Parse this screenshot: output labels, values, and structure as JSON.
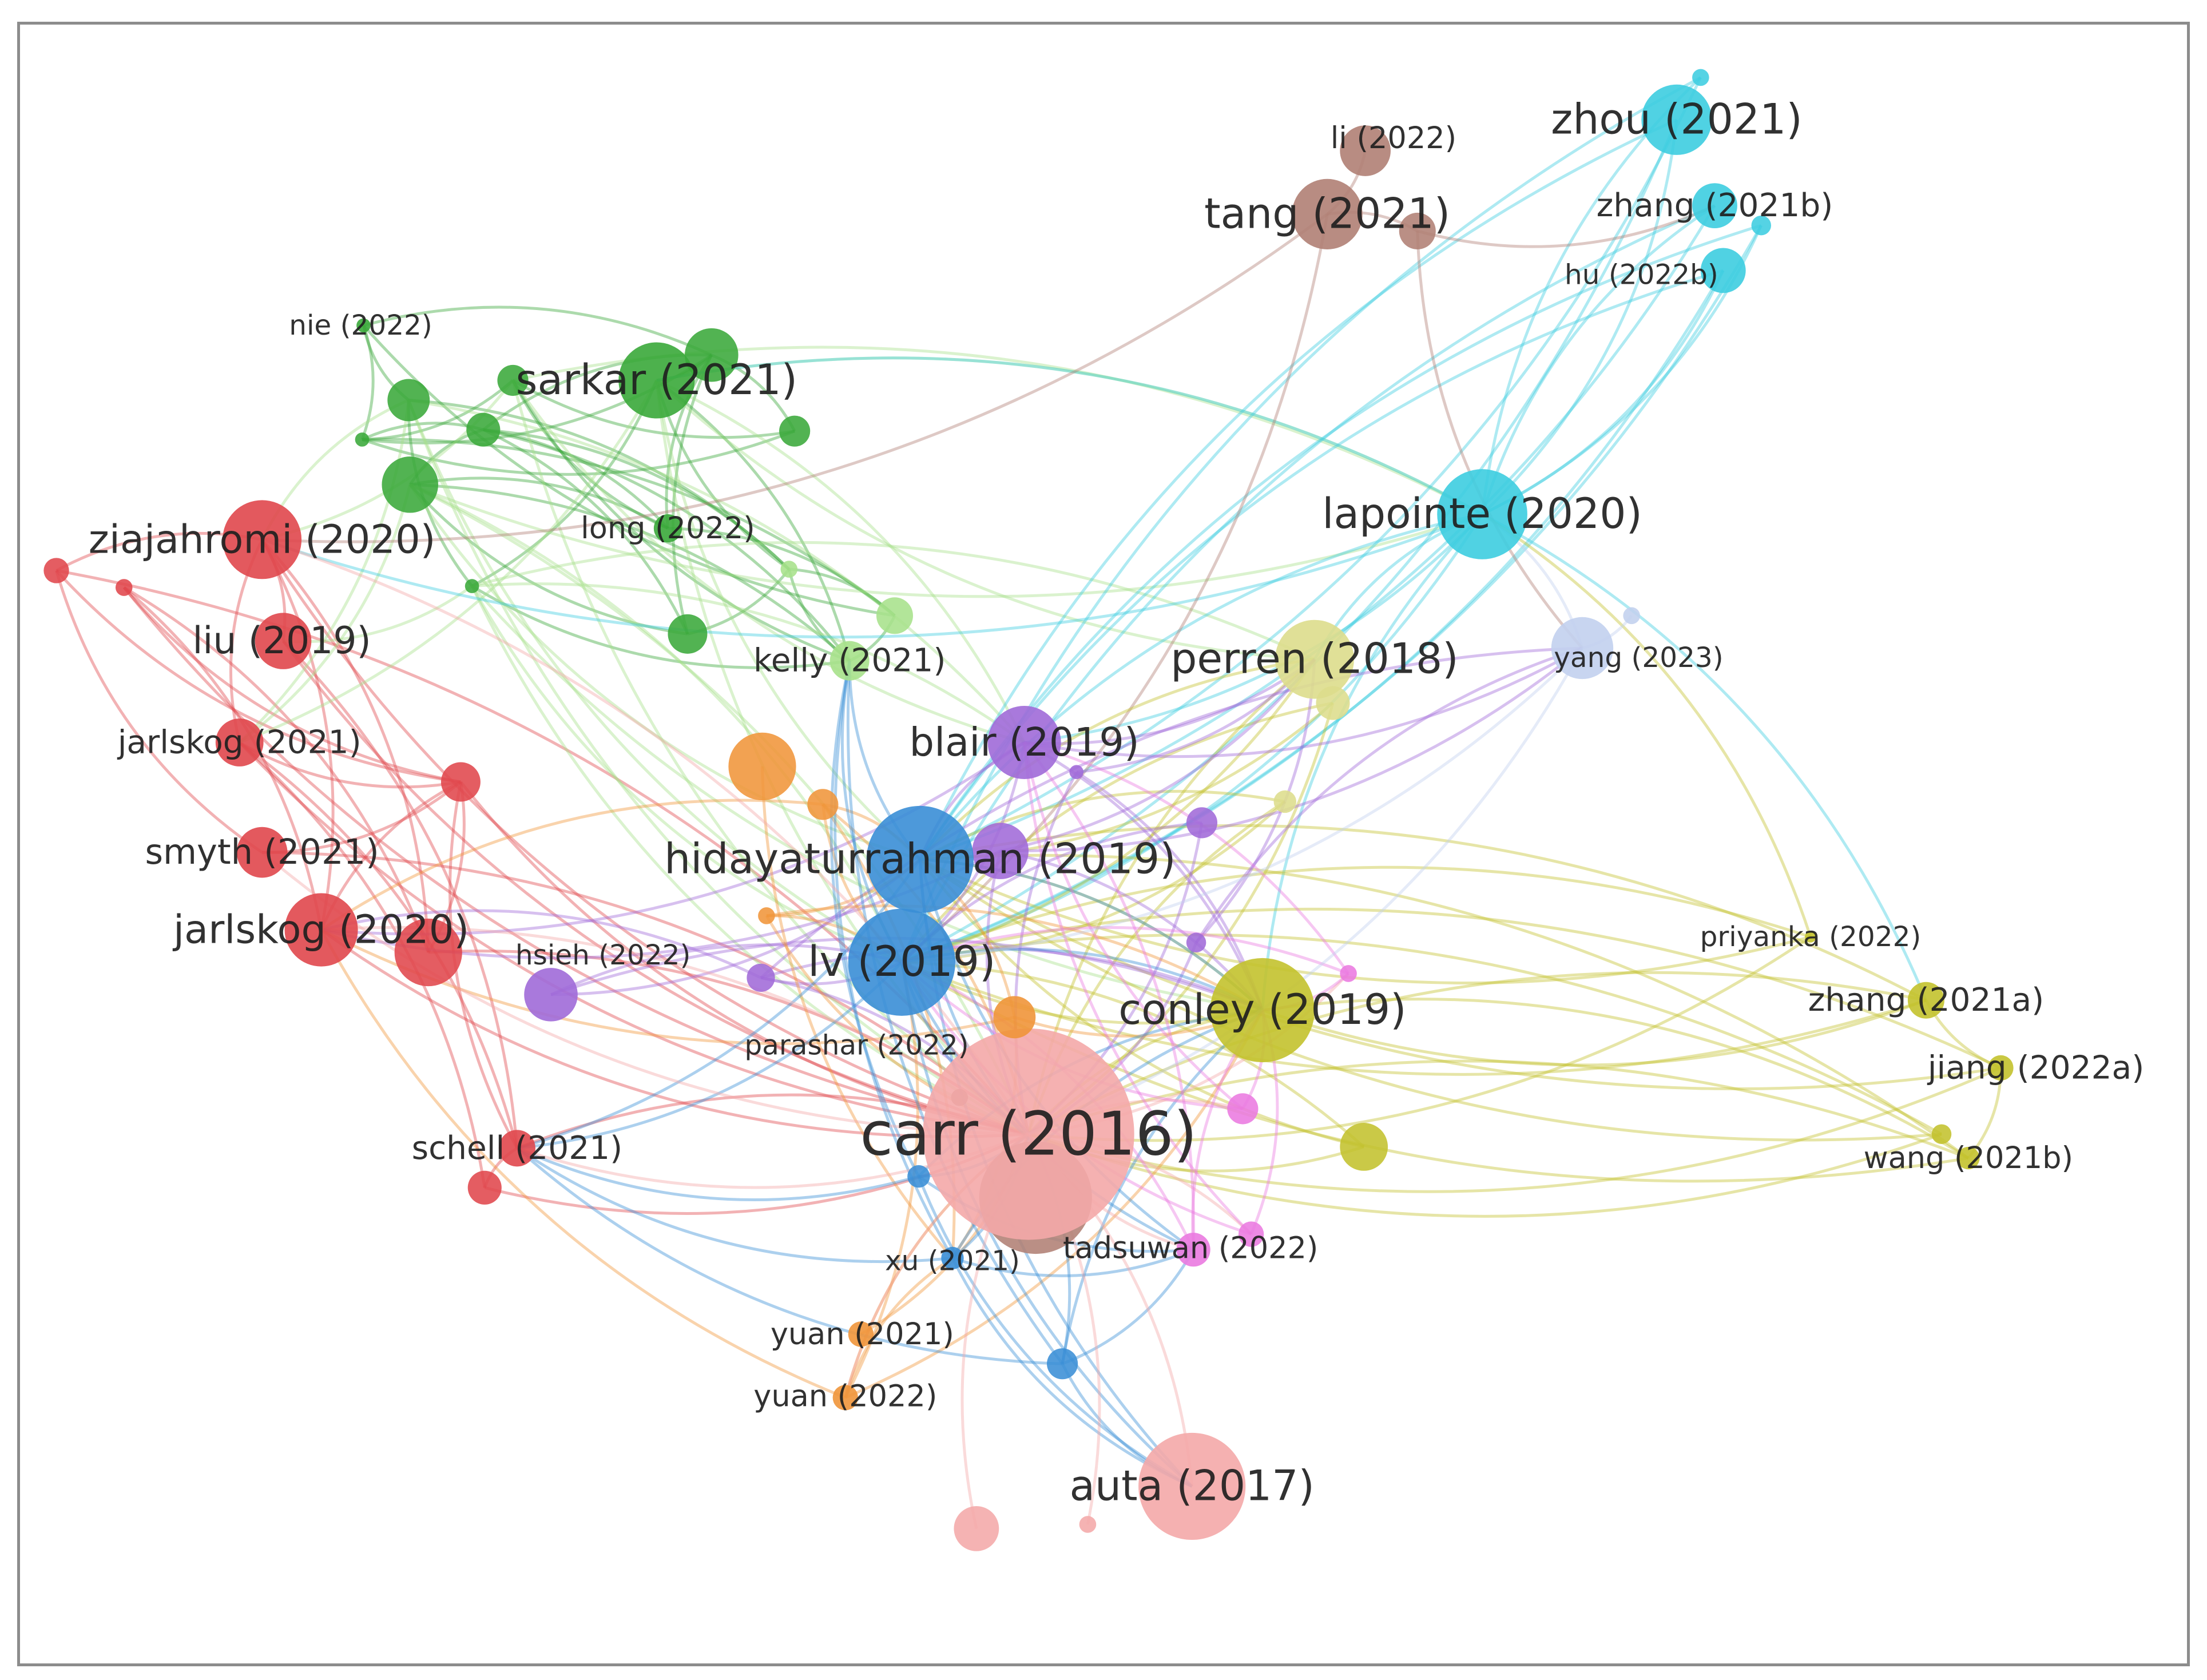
{
  "network": {
    "cluster_colors": {
      "red": "#e0474c",
      "green": "#3aa83a",
      "blue": "#3a8ed6",
      "yellow": "#c3c22e",
      "purple": "#a06ad8",
      "cyan": "#3dcde0",
      "orange": "#f0953a",
      "brown": "#b07f74",
      "pink_light": "#f4a8a8",
      "magenta": "#ea7ae0",
      "yellow_light": "#dddd8c",
      "green_light": "#a7e18b",
      "lavender": "#c2d0ee",
      "blue_dark": "#1f78c8"
    },
    "nodes": [
      {
        "id": "carr2016",
        "label": "carr (2016)",
        "cluster": "pink_light"
      },
      {
        "id": "auta2017",
        "label": "auta (2017)",
        "cluster": "pink_light"
      },
      {
        "id": "hidayaturrahman2019",
        "label": "hidayaturrahman (2019)",
        "cluster": "blue"
      },
      {
        "id": "lv2019",
        "label": "lv (2019)",
        "cluster": "blue"
      },
      {
        "id": "xu2021",
        "label": "xu (2021)",
        "cluster": "blue"
      },
      {
        "id": "conley2019",
        "label": "conley (2019)",
        "cluster": "yellow"
      },
      {
        "id": "perren2018",
        "label": "perren (2018)",
        "cluster": "yellow_light"
      },
      {
        "id": "priyanka2022",
        "label": "priyanka (2022)",
        "cluster": "yellow"
      },
      {
        "id": "zhang2021a",
        "label": "zhang (2021a)",
        "cluster": "yellow"
      },
      {
        "id": "jiang2022a",
        "label": "jiang (2022a)",
        "cluster": "yellow"
      },
      {
        "id": "wang2021b",
        "label": "wang (2021b)",
        "cluster": "yellow"
      },
      {
        "id": "lapointe2020",
        "label": "lapointe (2020)",
        "cluster": "cyan"
      },
      {
        "id": "zhou2021",
        "label": "zhou (2021)",
        "cluster": "cyan"
      },
      {
        "id": "zhang2021b",
        "label": "zhang (2021b)",
        "cluster": "cyan"
      },
      {
        "id": "hu2022b",
        "label": "hu (2022b)",
        "cluster": "cyan"
      },
      {
        "id": "tang2021",
        "label": "tang (2021)",
        "cluster": "brown"
      },
      {
        "id": "li2022",
        "label": "li (2022)",
        "cluster": "brown"
      },
      {
        "id": "sarkar2021",
        "label": "sarkar (2021)",
        "cluster": "green"
      },
      {
        "id": "nie2022",
        "label": "nie (2022)",
        "cluster": "green"
      },
      {
        "id": "long2022",
        "label": "long (2022)",
        "cluster": "green"
      },
      {
        "id": "kelly2021",
        "label": "kelly (2021)",
        "cluster": "green_light"
      },
      {
        "id": "ziajahromi2020",
        "label": "ziajahromi (2020)",
        "cluster": "red"
      },
      {
        "id": "liu2019",
        "label": "liu (2019)",
        "cluster": "red"
      },
      {
        "id": "jarlskog2021",
        "label": "jarlskog (2021)",
        "cluster": "red"
      },
      {
        "id": "smyth2021",
        "label": "smyth (2021)",
        "cluster": "red"
      },
      {
        "id": "jarlskog2020",
        "label": "jarlskog (2020)",
        "cluster": "red"
      },
      {
        "id": "schell2021",
        "label": "schell (2021)",
        "cluster": "red"
      },
      {
        "id": "hsieh2022",
        "label": "hsieh (2022)",
        "cluster": "purple"
      },
      {
        "id": "blair2019",
        "label": "blair (2019)",
        "cluster": "purple"
      },
      {
        "id": "parashar2022",
        "label": "parashar (2022)",
        "cluster": "orange"
      },
      {
        "id": "yuan2021",
        "label": "yuan (2021)",
        "cluster": "orange"
      },
      {
        "id": "yuan2022",
        "label": "yuan (2022)",
        "cluster": "orange"
      },
      {
        "id": "tadsuwan2022",
        "label": "tadsuwan (2022)",
        "cluster": "magenta"
      },
      {
        "id": "yang2023",
        "label": "yang (2023)",
        "cluster": "lavender"
      }
    ]
  }
}
